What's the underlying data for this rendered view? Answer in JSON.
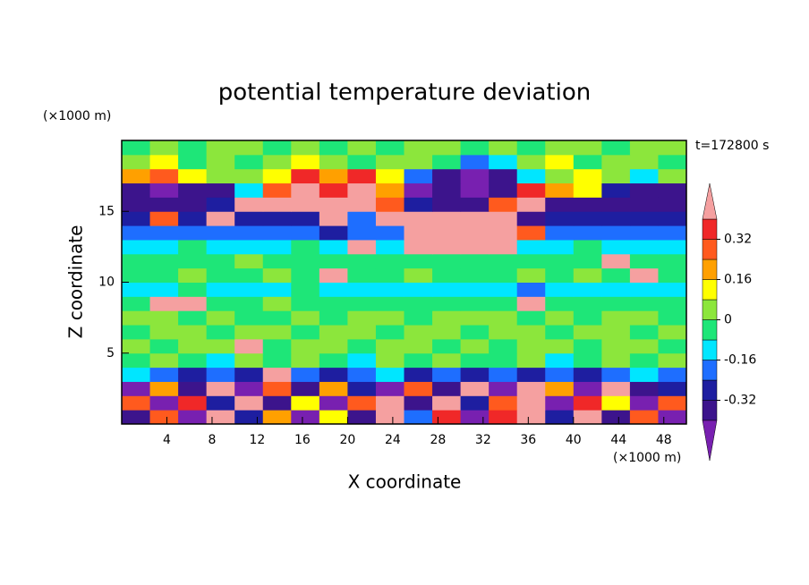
{
  "chart_data": {
    "type": "contour",
    "title": "potential temperature deviation",
    "x_label": "X coordinate",
    "y_label": "Z coordinate",
    "x_unit": "(×1000 m)",
    "y_unit": "(×1000 m)",
    "annotation": "t=172800 s",
    "xlim": [
      0,
      50
    ],
    "ylim": [
      0,
      20
    ],
    "xticks": [
      4,
      8,
      12,
      16,
      20,
      24,
      28,
      32,
      36,
      40,
      44,
      48
    ],
    "yticks": [
      5,
      10,
      15
    ],
    "x": [
      1.25,
      3.75,
      6.25,
      8.75,
      11.25,
      13.75,
      16.25,
      18.75,
      21.25,
      23.75,
      26.25,
      28.75,
      31.25,
      33.75,
      36.25,
      38.75,
      41.25,
      43.75,
      46.25,
      48.75
    ],
    "y": [
      0.5,
      1.5,
      2.5,
      3.5,
      4.5,
      5.5,
      6.5,
      7.5,
      8.5,
      9.5,
      10.5,
      11.5,
      12.5,
      13.5,
      14.5,
      15.5,
      16.5,
      17.5,
      18.5,
      19.5
    ],
    "values": [
      [
        -0.36,
        0.3,
        -0.45,
        0.42,
        -0.3,
        0.2,
        -0.45,
        0.1,
        -0.36,
        0.45,
        -0.2,
        0.33,
        -0.45,
        0.38,
        0.45,
        -0.3,
        0.45,
        -0.36,
        0.25,
        -0.45
      ],
      [
        0.25,
        -0.45,
        0.36,
        -0.3,
        0.45,
        -0.36,
        0.12,
        -0.45,
        0.3,
        0.45,
        -0.36,
        0.45,
        -0.28,
        0.3,
        0.45,
        -0.45,
        0.36,
        0.1,
        -0.45,
        0.3
      ],
      [
        -0.45,
        0.2,
        -0.36,
        0.45,
        -0.45,
        0.3,
        -0.36,
        0.2,
        -0.3,
        -0.45,
        0.3,
        -0.36,
        0.45,
        -0.45,
        0.45,
        0.2,
        -0.45,
        0.42,
        -0.36,
        -0.3
      ],
      [
        -0.12,
        -0.2,
        -0.28,
        -0.2,
        -0.28,
        0.45,
        -0.2,
        -0.28,
        -0.2,
        -0.12,
        -0.28,
        -0.2,
        -0.28,
        -0.2,
        -0.28,
        -0.2,
        -0.28,
        -0.2,
        -0.12,
        -0.2
      ],
      [
        -0.04,
        0.04,
        -0.04,
        -0.12,
        0.04,
        -0.04,
        0.04,
        -0.04,
        -0.12,
        0.04,
        -0.04,
        0.04,
        -0.04,
        -0.04,
        0.04,
        -0.12,
        -0.04,
        0.04,
        -0.04,
        0.04
      ],
      [
        0.04,
        -0.04,
        0.04,
        0.04,
        0.45,
        -0.04,
        0.04,
        0.04,
        -0.04,
        0.04,
        0.04,
        -0.04,
        0.04,
        -0.04,
        0.04,
        0.04,
        -0.04,
        0.04,
        0.04,
        -0.04
      ],
      [
        -0.04,
        0.04,
        0.04,
        -0.04,
        0.04,
        0.04,
        -0.04,
        0.04,
        0.04,
        -0.04,
        0.04,
        0.04,
        -0.04,
        0.04,
        0.04,
        -0.04,
        0.04,
        0.04,
        -0.04,
        0.04
      ],
      [
        0.04,
        0.04,
        -0.04,
        0.04,
        -0.04,
        -0.04,
        0.04,
        -0.04,
        0.04,
        0.04,
        -0.04,
        0.04,
        0.04,
        0.04,
        -0.04,
        0.04,
        -0.04,
        0.04,
        0.04,
        -0.04
      ],
      [
        -0.04,
        0.45,
        0.45,
        -0.04,
        -0.04,
        0.04,
        -0.04,
        -0.04,
        -0.04,
        -0.04,
        -0.04,
        -0.04,
        -0.04,
        -0.04,
        0.45,
        -0.04,
        -0.04,
        -0.04,
        -0.04,
        -0.04
      ],
      [
        -0.12,
        -0.12,
        -0.04,
        -0.12,
        -0.12,
        -0.12,
        -0.04,
        -0.12,
        -0.12,
        -0.12,
        -0.12,
        -0.12,
        -0.12,
        -0.12,
        -0.2,
        -0.12,
        -0.12,
        -0.12,
        -0.12,
        -0.12
      ],
      [
        -0.04,
        -0.04,
        0.04,
        -0.04,
        -0.04,
        0.04,
        -0.04,
        0.45,
        -0.04,
        -0.04,
        0.04,
        -0.04,
        -0.04,
        -0.04,
        0.04,
        -0.04,
        0.04,
        -0.04,
        0.45,
        -0.04
      ],
      [
        -0.04,
        -0.04,
        -0.04,
        -0.04,
        0.04,
        -0.04,
        -0.04,
        -0.04,
        -0.04,
        -0.04,
        -0.04,
        -0.04,
        -0.04,
        -0.04,
        -0.04,
        -0.04,
        -0.04,
        0.45,
        -0.04,
        -0.04
      ],
      [
        -0.12,
        -0.12,
        -0.04,
        -0.12,
        -0.12,
        -0.12,
        -0.04,
        -0.12,
        0.45,
        -0.12,
        0.45,
        0.45,
        0.45,
        0.45,
        -0.12,
        -0.12,
        -0.04,
        -0.12,
        -0.12,
        -0.12
      ],
      [
        -0.2,
        -0.2,
        -0.2,
        -0.2,
        -0.2,
        -0.2,
        -0.2,
        -0.28,
        -0.2,
        -0.2,
        0.45,
        0.45,
        0.45,
        0.45,
        0.3,
        -0.2,
        -0.2,
        -0.2,
        -0.2,
        -0.2
      ],
      [
        -0.28,
        0.3,
        -0.28,
        0.45,
        -0.28,
        -0.28,
        -0.28,
        0.45,
        -0.2,
        0.45,
        0.45,
        0.45,
        0.45,
        0.45,
        -0.36,
        -0.28,
        -0.28,
        -0.28,
        -0.28,
        -0.28
      ],
      [
        -0.36,
        -0.36,
        -0.36,
        -0.28,
        0.45,
        0.45,
        0.45,
        0.45,
        0.45,
        0.3,
        -0.28,
        -0.36,
        -0.36,
        0.3,
        0.45,
        -0.36,
        -0.36,
        -0.36,
        -0.36,
        -0.36
      ],
      [
        -0.36,
        -0.45,
        -0.36,
        -0.36,
        -0.12,
        0.3,
        0.45,
        0.36,
        0.45,
        0.2,
        -0.45,
        -0.36,
        -0.45,
        -0.36,
        0.36,
        0.2,
        0.12,
        -0.28,
        -0.36,
        -0.36
      ],
      [
        0.2,
        0.25,
        0.12,
        0.04,
        0.04,
        0.12,
        0.36,
        0.2,
        0.36,
        0.12,
        -0.2,
        -0.36,
        -0.45,
        -0.36,
        -0.12,
        0.04,
        0.12,
        0.04,
        -0.12,
        0.04
      ],
      [
        0.04,
        0.12,
        -0.04,
        0.04,
        -0.04,
        0.04,
        0.12,
        0.04,
        -0.04,
        0.04,
        0.04,
        -0.04,
        -0.2,
        -0.12,
        0.04,
        0.12,
        -0.04,
        0.04,
        0.04,
        -0.04
      ],
      [
        -0.04,
        0.04,
        -0.04,
        0.04,
        0.04,
        -0.04,
        0.04,
        -0.04,
        0.04,
        -0.04,
        0.04,
        0.04,
        -0.04,
        0.04,
        -0.04,
        0.04,
        0.04,
        -0.04,
        0.04,
        0.04
      ]
    ],
    "levels": [
      -0.4,
      -0.32,
      -0.24,
      -0.16,
      -0.08,
      0,
      0.08,
      0.16,
      0.24,
      0.32,
      0.4
    ],
    "colors": [
      "#7820b0",
      "#3c148c",
      "#1e1ea0",
      "#1e6eff",
      "#00e6ff",
      "#1ee678",
      "#8ce63c",
      "#ffff00",
      "#ffa000",
      "#ff5a1e",
      "#f02828",
      "#f5a0a0"
    ],
    "colorbar_ticks": [
      0.32,
      0.16,
      0,
      -0.16,
      -0.32
    ]
  }
}
